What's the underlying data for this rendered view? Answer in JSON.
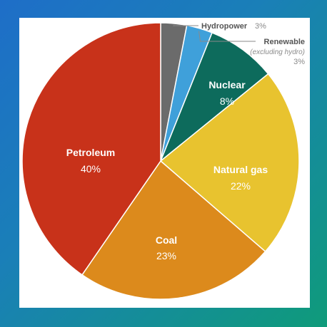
{
  "chart_data": {
    "type": "pie",
    "title": "",
    "slices": [
      {
        "label": "Hydropower",
        "sublabel": "",
        "value": 3,
        "value_text": "3%",
        "color": "#6b6b6b"
      },
      {
        "label": "Renewable",
        "sublabel": "(excluding hydro)",
        "value": 3,
        "value_text": "3%",
        "color": "#3fa0da"
      },
      {
        "label": "Nuclear",
        "sublabel": "",
        "value": 8,
        "value_text": "8%",
        "color": "#0d6b5c"
      },
      {
        "label": "Natural gas",
        "sublabel": "",
        "value": 22,
        "value_text": "22%",
        "color": "#e8c32f"
      },
      {
        "label": "Coal",
        "sublabel": "",
        "value": 23,
        "value_text": "23%",
        "color": "#dc8a1c"
      },
      {
        "label": "Petroleum",
        "sublabel": "",
        "value": 40,
        "value_text": "40%",
        "color": "#c8321a"
      }
    ],
    "legend": "none"
  },
  "colors": {
    "background_start": "#1e6ec8",
    "background_end": "#0f9b7a",
    "panel": "#ffffff"
  }
}
